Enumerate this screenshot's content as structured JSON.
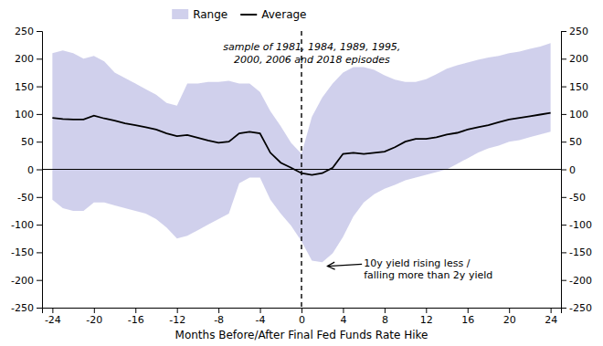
{
  "chart_data": {
    "type": "line",
    "x": [
      -24,
      -23,
      -22,
      -21,
      -20,
      -19,
      -18,
      -17,
      -16,
      -15,
      -14,
      -13,
      -12,
      -11,
      -10,
      -9,
      -8,
      -7,
      -6,
      -5,
      -4,
      -3,
      -2,
      -1,
      0,
      1,
      2,
      3,
      4,
      5,
      6,
      7,
      8,
      9,
      10,
      11,
      12,
      13,
      14,
      15,
      16,
      17,
      18,
      19,
      20,
      21,
      22,
      23,
      24
    ],
    "series": [
      {
        "name": "Range",
        "type": "area",
        "color": "#aaaadd",
        "upper": [
          210,
          215,
          210,
          200,
          205,
          195,
          175,
          165,
          155,
          145,
          135,
          120,
          115,
          155,
          155,
          158,
          158,
          160,
          155,
          155,
          140,
          105,
          78,
          48,
          28,
          95,
          130,
          155,
          175,
          185,
          185,
          180,
          170,
          162,
          158,
          158,
          163,
          172,
          182,
          188,
          193,
          198,
          202,
          205,
          210,
          213,
          218,
          222,
          228
        ],
        "lower": [
          -55,
          -70,
          -75,
          -75,
          -60,
          -60,
          -65,
          -70,
          -75,
          -80,
          -90,
          -105,
          -125,
          -120,
          -110,
          -100,
          -90,
          -80,
          -25,
          -15,
          -15,
          -55,
          -80,
          -102,
          -130,
          -165,
          -168,
          -152,
          -122,
          -85,
          -60,
          -45,
          -35,
          -28,
          -20,
          -15,
          -10,
          -5,
          0,
          10,
          20,
          30,
          38,
          43,
          50,
          53,
          58,
          63,
          68
        ]
      },
      {
        "name": "Average",
        "type": "line",
        "color": "#000000",
        "values": [
          93,
          91,
          90,
          90,
          97,
          92,
          88,
          83,
          80,
          76,
          72,
          65,
          60,
          62,
          57,
          52,
          48,
          50,
          65,
          68,
          65,
          30,
          12,
          3,
          -7,
          -10,
          -7,
          3,
          28,
          30,
          28,
          30,
          32,
          40,
          50,
          55,
          55,
          58,
          63,
          66,
          72,
          76,
          80,
          85,
          90,
          93,
          96,
          99,
          102
        ]
      }
    ],
    "hlines": [
      {
        "y": 0,
        "color": "#000000"
      }
    ],
    "vlines": [
      {
        "x": 0,
        "color": "#000000",
        "line_style": "dashed"
      }
    ],
    "xlim": [
      -25,
      25
    ],
    "ylim": [
      -250,
      250
    ],
    "xticks": [
      -24,
      -20,
      -16,
      -12,
      -8,
      -4,
      0,
      4,
      8,
      12,
      16,
      20,
      24
    ],
    "yticks": [
      -250,
      -200,
      -150,
      -100,
      -50,
      0,
      50,
      100,
      150,
      200,
      250
    ],
    "y2lim": [
      -250,
      250
    ],
    "y2ticks": [
      -250,
      -200,
      -150,
      -100,
      -50,
      0,
      50,
      100,
      150,
      200,
      250
    ],
    "x_label": "Months Before/After Final Fed Funds Rate Hike",
    "subtitle": "sample of 1981, 1984, 1989, 1995,\n2000, 2006 and 2018 episodes",
    "annotations": [
      {
        "text": "10y yield rising less /\nfalling more than 2y yield",
        "x": 6,
        "y": -160,
        "arrow_x": 2.5,
        "arrow_y": -175
      }
    ],
    "legend": "top",
    "grid": false
  }
}
